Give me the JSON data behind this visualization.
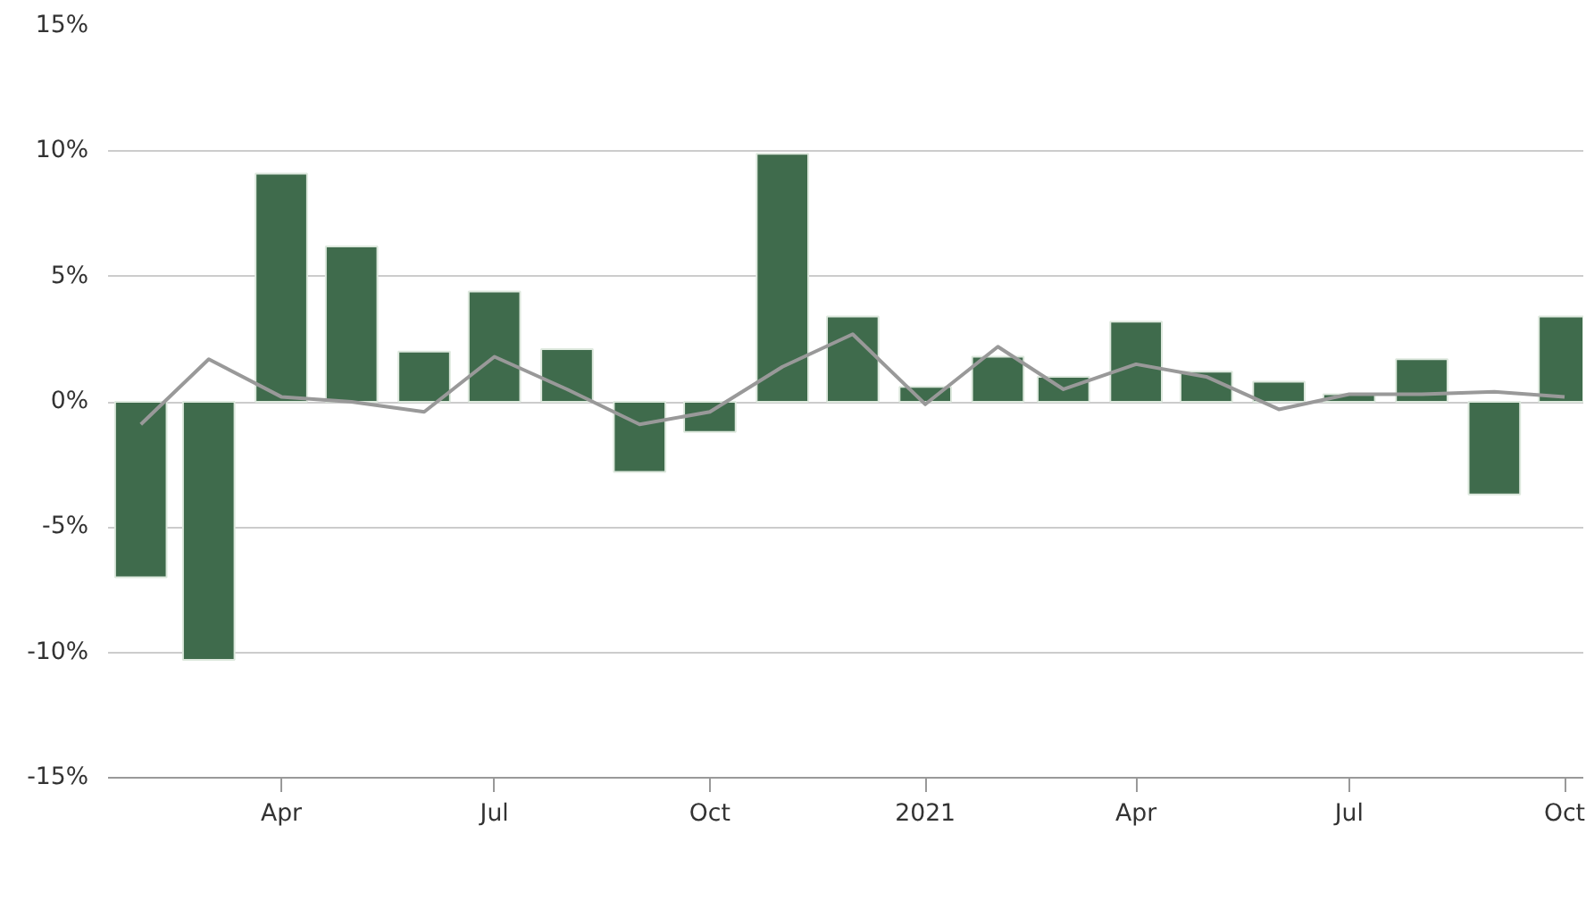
{
  "chart_data": {
    "type": "bar",
    "x": [
      "2020-02",
      "2020-03",
      "2020-04",
      "2020-05",
      "2020-06",
      "2020-07",
      "2020-08",
      "2020-09",
      "2020-10",
      "2020-11",
      "2020-12",
      "2021-01",
      "2021-02",
      "2021-03",
      "2021-04",
      "2021-05",
      "2021-06",
      "2021-07",
      "2021-08",
      "2021-09",
      "2021-10"
    ],
    "series": [
      {
        "color": "#3f6b4c",
        "values": [
          -7.0,
          -10.3,
          9.1,
          6.2,
          2.0,
          4.4,
          2.1,
          -2.8,
          -1.2,
          9.9,
          3.4,
          0.6,
          1.8,
          1.0,
          3.2,
          1.2,
          0.8,
          0.3,
          1.7,
          -3.7,
          3.4
        ]
      },
      {
        "type": "line",
        "color": "#999999",
        "values": [
          -0.9,
          1.7,
          0.2,
          0.0,
          -0.4,
          1.8,
          0.5,
          -0.9,
          -0.4,
          1.4,
          2.7,
          -0.1,
          2.2,
          0.5,
          1.5,
          1.0,
          -0.3,
          0.3,
          0.3,
          0.4,
          0.2
        ]
      }
    ],
    "xlim": [
      "2020-01-18",
      "2021-10-09"
    ],
    "xticks": [
      {
        "value": "2020-04",
        "label": "Apr"
      },
      {
        "value": "2020-07",
        "label": "Jul"
      },
      {
        "value": "2020-10",
        "label": "Oct"
      },
      {
        "value": "2021-01",
        "label": "2021"
      },
      {
        "value": "2021-04",
        "label": "Apr"
      },
      {
        "value": "2021-07",
        "label": "Jul"
      },
      {
        "value": "2021-10",
        "label": "Oct"
      }
    ],
    "ylim": [
      -15,
      15
    ],
    "yticks": [
      {
        "value": -15,
        "label": "-15%"
      },
      {
        "value": -10,
        "label": "-10%"
      },
      {
        "value": -5,
        "label": "-5%"
      },
      {
        "value": 0,
        "label": "0%"
      },
      {
        "value": 5,
        "label": "5%"
      },
      {
        "value": 10,
        "label": "10%"
      },
      {
        "value": 15,
        "label": "15%"
      }
    ],
    "grid": "y"
  }
}
